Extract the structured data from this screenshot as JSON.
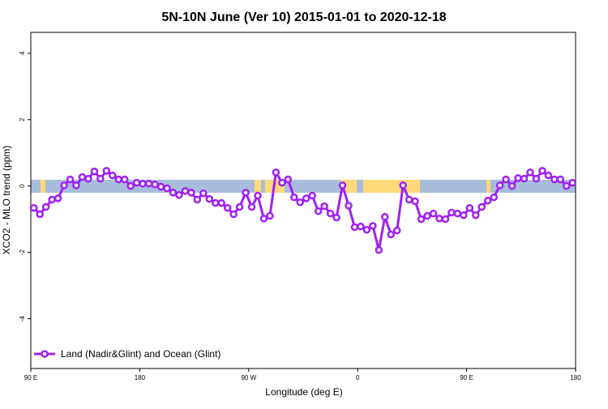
{
  "chart_data": {
    "type": "line",
    "title": "5N-10N June (Ver 10)   2015-01-01 to 2020-12-18",
    "x_label": "Longitude (deg E)",
    "y_label": "XCO2 - MLO trend (ppm)",
    "x": [
      92.5,
      97.5,
      102.5,
      107.5,
      112.5,
      117.5,
      122.5,
      127.5,
      132.5,
      137.5,
      142.5,
      147.5,
      152.5,
      157.5,
      162.5,
      167.5,
      172.5,
      177.5,
      182.5,
      187.5,
      192.5,
      197.5,
      202.5,
      207.5,
      212.5,
      217.5,
      222.5,
      227.5,
      232.5,
      237.5,
      242.5,
      247.5,
      252.5,
      257.5,
      262.5,
      267.5,
      272.5,
      277.5,
      282.5,
      287.5,
      292.5,
      297.5,
      302.5,
      307.5,
      312.5,
      317.5,
      322.5,
      327.5,
      332.5,
      337.5,
      342.5,
      347.5,
      352.5,
      357.5,
      362.5,
      367.5,
      372.5,
      377.5,
      382.5,
      387.5,
      392.5,
      397.5,
      402.5,
      407.5,
      412.5,
      417.5,
      422.5,
      427.5,
      432.5,
      437.5,
      442.5,
      447.5,
      452.5,
      457.5,
      462.5,
      467.5,
      472.5,
      477.5,
      482.5,
      487.5,
      492.5,
      497.5,
      502.5,
      507.5,
      512.5,
      517.5,
      522.5,
      527.5,
      532.5,
      537.5
    ],
    "series": [
      {
        "name": "Land (Nadir&Glint) and Ocean (Glint)",
        "color": "#a020f0",
        "values": [
          -0.66,
          -0.85,
          -0.63,
          -0.41,
          -0.37,
          0.02,
          0.2,
          0.02,
          0.27,
          0.22,
          0.44,
          0.22,
          0.46,
          0.32,
          0.2,
          0.2,
          0,
          0.1,
          0.07,
          0.07,
          0.05,
          -0.02,
          -0.07,
          -0.2,
          -0.27,
          -0.15,
          -0.2,
          -0.41,
          -0.22,
          -0.39,
          -0.51,
          -0.51,
          -0.66,
          -0.85,
          -0.63,
          -0.2,
          -0.63,
          -0.29,
          -0.98,
          -0.9,
          0.41,
          0.1,
          0.2,
          -0.34,
          -0.49,
          -0.37,
          -0.29,
          -0.76,
          -0.61,
          -0.83,
          -0.95,
          0.02,
          -0.59,
          -1.24,
          -1.22,
          -1.32,
          -1.2,
          -1.93,
          -0.93,
          -1.46,
          -1.34,
          0.02,
          -0.41,
          -0.46,
          -1.0,
          -0.9,
          -0.83,
          -0.98,
          -1.0,
          -0.8,
          -0.83,
          -0.88,
          -0.66,
          -0.88,
          -0.63,
          -0.44,
          -0.34,
          0.02,
          0.2,
          0,
          0.24,
          0.22,
          0.41,
          0.22,
          0.46,
          0.32,
          0.2,
          0.2,
          0,
          0.1
        ]
      }
    ],
    "xlim": [
      90,
      540
    ],
    "xticks": [
      {
        "value": 90,
        "label": "90 E"
      },
      {
        "value": 180,
        "label": "180"
      },
      {
        "value": 270,
        "label": "90 W"
      },
      {
        "value": 360,
        "label": "0"
      },
      {
        "value": 450,
        "label": "90 E"
      },
      {
        "value": 540,
        "label": "180"
      }
    ],
    "ylim": [
      -5.5,
      4.63
    ],
    "yticks": [
      -4,
      -2,
      0,
      2,
      4
    ],
    "legend": "bottom-left"
  }
}
